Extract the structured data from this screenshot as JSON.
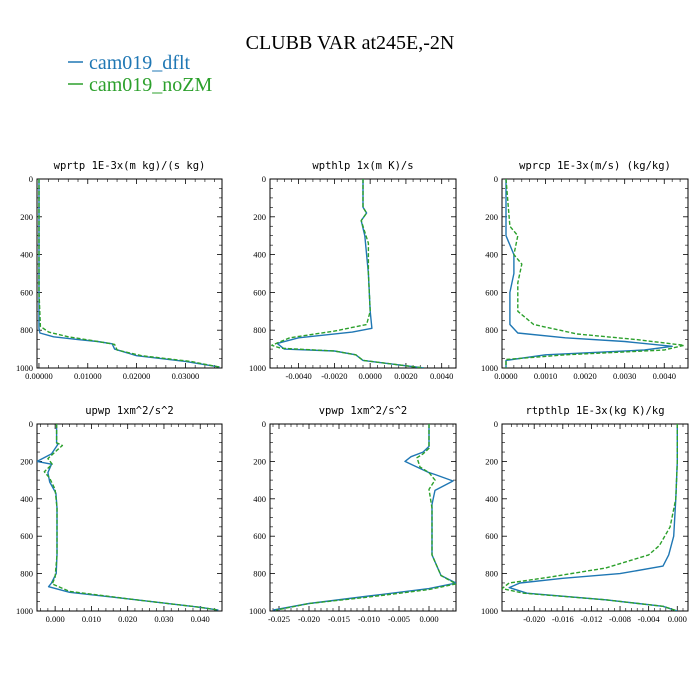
{
  "title": "CLUBB VAR at245E,-2N",
  "colors": {
    "dflt": "#1f77b4",
    "noZM": "#2ca02c",
    "axis": "#000000"
  },
  "legend": [
    {
      "label": "cam019_dflt",
      "color": "#1f77b4",
      "dash": "solid"
    },
    {
      "label": "cam019_noZM",
      "color": "#2ca02c",
      "dash": "dashed"
    }
  ],
  "chart_data": [
    {
      "type": "line",
      "title": "wprtp  1E-3x(m kg)/(s kg)",
      "xlim": [
        -0.0004,
        0.0375
      ],
      "ylim": [
        0,
        1000
      ],
      "y_inverted": true,
      "xticks": [
        0,
        0.01,
        0.02,
        0.03
      ],
      "xticklabels": [
        "0.00000",
        "0.01000",
        "0.02000",
        "0.03000"
      ],
      "yticks": [
        0,
        200,
        400,
        600,
        800,
        1000
      ],
      "yticklabels": [
        "0",
        "200",
        "400",
        "600",
        "800",
        "1000"
      ],
      "series": [
        {
          "name": "cam019_dflt",
          "points": [
            [
              0,
              0
            ],
            [
              0,
              600
            ],
            [
              0,
              790
            ],
            [
              0.0002,
              815
            ],
            [
              0.003,
              835
            ],
            [
              0.008,
              850
            ],
            [
              0.012,
              860
            ],
            [
              0.015,
              872
            ],
            [
              0.0155,
              900
            ],
            [
              0.02,
              935
            ],
            [
              0.03,
              965
            ],
            [
              0.037,
              995
            ]
          ]
        },
        {
          "name": "cam019_noZM",
          "points": [
            [
              0,
              0
            ],
            [
              0,
              600
            ],
            [
              0.0003,
              780
            ],
            [
              0.002,
              810
            ],
            [
              0.006,
              835
            ],
            [
              0.011,
              855
            ],
            [
              0.0155,
              875
            ],
            [
              0.016,
              905
            ],
            [
              0.021,
              935
            ],
            [
              0.031,
              965
            ],
            [
              0.037,
              995
            ]
          ]
        }
      ]
    },
    {
      "type": "line",
      "title": "wpthlp  1x(m K)/s",
      "xlim": [
        -0.0056,
        0.0048
      ],
      "ylim": [
        0,
        1000
      ],
      "y_inverted": true,
      "xticks": [
        -0.004,
        -0.002,
        0,
        0.002,
        0.004
      ],
      "xticklabels": [
        "-0.0040",
        "-0.0020",
        "0.0000",
        "0.0020",
        "0.0040"
      ],
      "yticks": [
        0,
        200,
        400,
        600,
        800,
        1000
      ],
      "yticklabels": [
        "0",
        "200",
        "400",
        "600",
        "800",
        "1000"
      ],
      "series": [
        {
          "name": "cam019_dflt",
          "points": [
            [
              -0.0004,
              0
            ],
            [
              -0.0004,
              150
            ],
            [
              -0.0002,
              180
            ],
            [
              -0.0005,
              220
            ],
            [
              -0.0003,
              300
            ],
            [
              -0.0001,
              500
            ],
            [
              0,
              700
            ],
            [
              0.0001,
              790
            ],
            [
              -0.001,
              810
            ],
            [
              -0.004,
              840
            ],
            [
              -0.0052,
              870
            ],
            [
              -0.0048,
              900
            ],
            [
              -0.002,
              910
            ],
            [
              -0.0008,
              930
            ],
            [
              -0.0004,
              960
            ],
            [
              0.003,
              1000
            ]
          ]
        },
        {
          "name": "cam019_noZM",
          "points": [
            [
              -0.0004,
              0
            ],
            [
              -0.0004,
              150
            ],
            [
              -0.0002,
              180
            ],
            [
              -0.0005,
              220
            ],
            [
              -0.0001,
              340
            ],
            [
              -0.0001,
              500
            ],
            [
              0,
              700
            ],
            [
              -0.0002,
              770
            ],
            [
              -0.002,
              805
            ],
            [
              -0.0045,
              840
            ],
            [
              -0.0055,
              880
            ],
            [
              -0.005,
              895
            ],
            [
              -0.002,
              910
            ],
            [
              -0.0008,
              930
            ],
            [
              -0.0004,
              960
            ],
            [
              0.003,
              1000
            ]
          ]
        }
      ]
    },
    {
      "type": "line",
      "title": "wprcp  1E-3x(m/s) (kg/kg)",
      "xlim": [
        -0.0001,
        0.0046
      ],
      "ylim": [
        0,
        1000
      ],
      "y_inverted": true,
      "xticks": [
        0,
        0.001,
        0.002,
        0.003,
        0.004
      ],
      "xticklabels": [
        "0.0000",
        "0.0010",
        "0.0020",
        "0.0030",
        "0.0040"
      ],
      "yticks": [
        0,
        200,
        400,
        600,
        800,
        1000
      ],
      "yticklabels": [
        "0",
        "200",
        "400",
        "600",
        "800",
        "1000"
      ],
      "series": [
        {
          "name": "cam019_dflt",
          "points": [
            [
              0,
              0
            ],
            [
              0,
              300
            ],
            [
              0.0002,
              400
            ],
            [
              0.0002,
              500
            ],
            [
              0.0001,
              600
            ],
            [
              0.0001,
              770
            ],
            [
              0.0003,
              815
            ],
            [
              0.0015,
              840
            ],
            [
              0.003,
              860
            ],
            [
              0.0042,
              885
            ],
            [
              0.0035,
              905
            ],
            [
              0.001,
              930
            ],
            [
              0,
              960
            ],
            [
              0,
              1000
            ]
          ]
        },
        {
          "name": "cam019_noZM",
          "points": [
            [
              0,
              0
            ],
            [
              0.0001,
              250
            ],
            [
              0.0003,
              300
            ],
            [
              0.0002,
              400
            ],
            [
              0.0004,
              450
            ],
            [
              0.0003,
              550
            ],
            [
              0.0003,
              700
            ],
            [
              0.0007,
              770
            ],
            [
              0.0018,
              820
            ],
            [
              0.0033,
              850
            ],
            [
              0.0045,
              880
            ],
            [
              0.004,
              905
            ],
            [
              0.0015,
              930
            ],
            [
              0,
              955
            ],
            [
              0,
              1000
            ]
          ]
        }
      ]
    },
    {
      "type": "line",
      "title": "upwp  1xm^2/s^2",
      "xlim": [
        -0.005,
        0.046
      ],
      "ylim": [
        0,
        1000
      ],
      "y_inverted": true,
      "xticks": [
        0,
        0.01,
        0.02,
        0.03,
        0.04
      ],
      "xticklabels": [
        "0.000",
        "0.010",
        "0.020",
        "0.030",
        "0.040"
      ],
      "yticks": [
        0,
        200,
        400,
        600,
        800,
        1000
      ],
      "yticklabels": [
        "0",
        "200",
        "400",
        "600",
        "800",
        "1000"
      ],
      "series": [
        {
          "name": "cam019_dflt",
          "points": [
            [
              0.0004,
              0
            ],
            [
              0.0004,
              100
            ],
            [
              0.0007,
              110
            ],
            [
              -0.001,
              160
            ],
            [
              -0.005,
              200
            ],
            [
              -0.001,
              215
            ],
            [
              -0.002,
              260
            ],
            [
              -0.0015,
              310
            ],
            [
              0.0002,
              370
            ],
            [
              0.0005,
              450
            ],
            [
              0.0005,
              700
            ],
            [
              0.0003,
              800
            ],
            [
              -0.001,
              850
            ],
            [
              -0.0018,
              870
            ],
            [
              0.004,
              900
            ],
            [
              0.02,
              935
            ],
            [
              0.04,
              980
            ],
            [
              0.045,
              995
            ]
          ]
        },
        {
          "name": "cam019_noZM",
          "points": [
            [
              0.0004,
              0
            ],
            [
              0.0004,
              100
            ],
            [
              0.002,
              115
            ],
            [
              0.0005,
              140
            ],
            [
              -0.002,
              185
            ],
            [
              -0.0008,
              215
            ],
            [
              -0.003,
              255
            ],
            [
              -0.0015,
              290
            ],
            [
              0,
              350
            ],
            [
              0.0005,
              450
            ],
            [
              0.0005,
              700
            ],
            [
              0,
              820
            ],
            [
              -0.0008,
              855
            ],
            [
              0.004,
              895
            ],
            [
              0.02,
              935
            ],
            [
              0.04,
              980
            ],
            [
              0.045,
              995
            ]
          ]
        }
      ]
    },
    {
      "type": "line",
      "title": "vpwp  1xm^2/s^2",
      "xlim": [
        -0.0265,
        0.0045
      ],
      "ylim": [
        0,
        1000
      ],
      "y_inverted": true,
      "xticks": [
        -0.025,
        -0.02,
        -0.015,
        -0.01,
        -0.005,
        0
      ],
      "xticklabels": [
        "-0.025",
        "-0.020",
        "-0.015",
        "-0.010",
        "-0.005",
        "0.000"
      ],
      "yticks": [
        0,
        200,
        400,
        600,
        800,
        1000
      ],
      "yticklabels": [
        "0",
        "200",
        "400",
        "600",
        "800",
        "1000"
      ],
      "series": [
        {
          "name": "cam019_dflt",
          "points": [
            [
              0,
              0
            ],
            [
              0,
              120
            ],
            [
              -0.001,
              150
            ],
            [
              -0.003,
              175
            ],
            [
              -0.004,
              200
            ],
            [
              -0.003,
              215
            ],
            [
              0,
              260
            ],
            [
              0.001,
              270
            ],
            [
              0.004,
              305
            ],
            [
              0.001,
              355
            ],
            [
              0.0005,
              430
            ],
            [
              0.0005,
              700
            ],
            [
              0.002,
              810
            ],
            [
              0.0045,
              850
            ],
            [
              0,
              880
            ],
            [
              -0.01,
              920
            ],
            [
              -0.02,
              960
            ],
            [
              -0.026,
              995
            ]
          ]
        },
        {
          "name": "cam019_noZM",
          "points": [
            [
              0,
              0
            ],
            [
              0,
              130
            ],
            [
              -0.001,
              160
            ],
            [
              -0.002,
              180
            ],
            [
              -0.0015,
              230
            ],
            [
              0,
              260
            ],
            [
              0.001,
              300
            ],
            [
              0,
              350
            ],
            [
              0.0005,
              450
            ],
            [
              0.0005,
              700
            ],
            [
              0.002,
              810
            ],
            [
              0.0045,
              855
            ],
            [
              0,
              885
            ],
            [
              -0.01,
              925
            ],
            [
              -0.02,
              960
            ],
            [
              -0.0255,
              995
            ]
          ]
        }
      ]
    },
    {
      "type": "line",
      "title": "rtpthlp  1E-3x(kg K)/kg",
      "xlim": [
        -0.0245,
        0.0015
      ],
      "ylim": [
        0,
        1000
      ],
      "y_inverted": true,
      "xticks": [
        -0.02,
        -0.016,
        -0.012,
        -0.008,
        -0.004,
        0
      ],
      "xticklabels": [
        "-0.020",
        "-0.016",
        "-0.012",
        "-0.008",
        "-0.004",
        "0.000"
      ],
      "yticks": [
        0,
        200,
        400,
        600,
        800,
        1000
      ],
      "yticklabels": [
        "0",
        "200",
        "400",
        "600",
        "800",
        "1000"
      ],
      "series": [
        {
          "name": "cam019_dflt",
          "points": [
            [
              0,
              0
            ],
            [
              0,
              200
            ],
            [
              -0.0002,
              400
            ],
            [
              -0.0005,
              600
            ],
            [
              -0.0012,
              700
            ],
            [
              -0.002,
              760
            ],
            [
              -0.008,
              800
            ],
            [
              -0.016,
              825
            ],
            [
              -0.022,
              850
            ],
            [
              -0.0235,
              875
            ],
            [
              -0.021,
              905
            ],
            [
              -0.01,
              940
            ],
            [
              -0.002,
              975
            ],
            [
              0,
              1000
            ]
          ]
        },
        {
          "name": "cam019_noZM",
          "points": [
            [
              0,
              0
            ],
            [
              0,
              200
            ],
            [
              -0.0002,
              400
            ],
            [
              -0.001,
              550
            ],
            [
              -0.0025,
              650
            ],
            [
              -0.004,
              700
            ],
            [
              -0.01,
              770
            ],
            [
              -0.018,
              820
            ],
            [
              -0.0235,
              850
            ],
            [
              -0.0245,
              880
            ],
            [
              -0.0215,
              905
            ],
            [
              -0.01,
              940
            ],
            [
              -0.002,
              975
            ],
            [
              0,
              1000
            ]
          ]
        }
      ]
    }
  ]
}
